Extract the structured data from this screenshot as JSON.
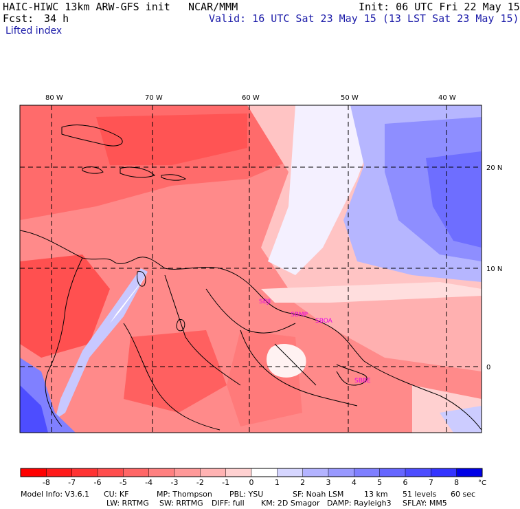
{
  "header": {
    "model_title": "HAIC-HIWC 13km ARW-GFS init",
    "agency": "NCAR/MMM",
    "init_time": "Init: 06 UTC Fri 22 May 15",
    "forecast_label": "Fcst:",
    "forecast_hours": "34 h",
    "valid_time": "Valid: 16 UTC Sat 23 May 15 (13 LST Sat 23 May 15)",
    "field_name": "Lifted index"
  },
  "map": {
    "lon_labels": [
      "80 W",
      "70 W",
      "60 W",
      "50 W",
      "40 W"
    ],
    "lat_labels": [
      "20 N",
      "10 N",
      "0"
    ],
    "station_labels": [
      "SBJI",
      "SBMP",
      "SBOA",
      "SBBE"
    ],
    "colors": {
      "negative": "#ff0000",
      "positive": "#0000ff",
      "border": "#000000",
      "station": "#e600e6"
    }
  },
  "colorbar": {
    "tick_labels": [
      "-8",
      "-7",
      "-6",
      "-5",
      "-4",
      "-3",
      "-2",
      "-1",
      "0",
      "1",
      "2",
      "3",
      "4",
      "5",
      "6",
      "7",
      "8"
    ],
    "unit": "°C",
    "colors": [
      "#ff0000",
      "#ff1a1a",
      "#ff3333",
      "#ff4d4d",
      "#ff6666",
      "#ff8080",
      "#ff9999",
      "#ffb3b3",
      "#ffd1d1",
      "#ffffff",
      "#d6d6ff",
      "#b3b3ff",
      "#9999ff",
      "#7f7fff",
      "#6666ff",
      "#4d4dff",
      "#3333ff",
      "#0000e6"
    ]
  },
  "footer": {
    "line1": [
      "Model Info: V3.6.1",
      "CU: KF",
      "MP: Thompson",
      "PBL: YSU",
      "SF: Noah LSM",
      "13 km",
      "51 levels",
      "60 sec"
    ],
    "line2": [
      "LW: RRTMG",
      "SW: RRTMG",
      "DIFF: full",
      "KM: 2D Smagor",
      "DAMP: Rayleigh3",
      "SFLAY: MM5"
    ]
  }
}
